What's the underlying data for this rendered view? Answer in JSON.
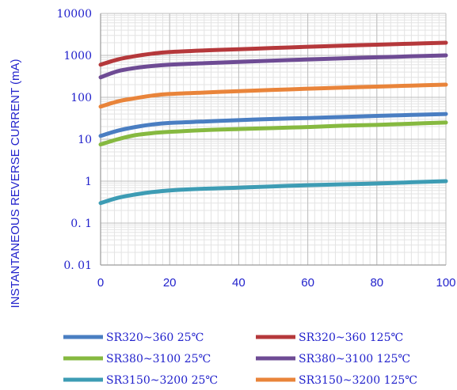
{
  "chart_data": {
    "type": "line",
    "title": "",
    "xlabel": "",
    "ylabel": "INSTANTANEOUS REVERSE CURRENT (mA)",
    "xlim": [
      0,
      100
    ],
    "ylim": [
      0.01,
      10000
    ],
    "yscale": "log",
    "grid": true,
    "legend_position": "bottom",
    "x_ticks": [
      "0",
      "20",
      "40",
      "60",
      "80",
      "100"
    ],
    "y_ticks": [
      "10000",
      "1000",
      "100",
      "10",
      "1",
      "0. 1",
      "0. 01"
    ],
    "x": [
      0,
      5,
      10,
      15,
      20,
      30,
      40,
      50,
      60,
      70,
      80,
      90,
      100
    ],
    "series": [
      {
        "name": "SR320~360  25℃",
        "color": "#4a7ec2",
        "values": [
          12,
          16,
          19.5,
          22.5,
          24.5,
          26.5,
          28.5,
          30.5,
          32,
          34,
          36,
          38,
          40
        ]
      },
      {
        "name": "SR320~360  125℃",
        "color": "#b5383b",
        "values": [
          600,
          800,
          960,
          1100,
          1200,
          1310,
          1400,
          1500,
          1600,
          1700,
          1800,
          1900,
          2000
        ]
      },
      {
        "name": "SR380~3100  25℃",
        "color": "#86b940",
        "values": [
          7.5,
          10,
          12.5,
          14,
          15,
          16.5,
          17.5,
          18.5,
          19.5,
          21,
          22,
          23.5,
          25
        ]
      },
      {
        "name": "SR380~3100  125℃",
        "color": "#6e4b94",
        "values": [
          300,
          420,
          500,
          560,
          600,
          650,
          700,
          750,
          800,
          850,
          900,
          950,
          1000
        ]
      },
      {
        "name": "SR3150~3200  25℃",
        "color": "#3d9cb4",
        "values": [
          0.3,
          0.4,
          0.48,
          0.55,
          0.6,
          0.66,
          0.7,
          0.75,
          0.8,
          0.84,
          0.88,
          0.94,
          1.0
        ]
      },
      {
        "name": "SR3150~3200  125℃",
        "color": "#e9843a",
        "values": [
          60,
          80,
          95,
          110,
          120,
          130,
          140,
          150,
          160,
          170,
          180,
          190,
          200
        ]
      }
    ],
    "legend_order": [
      0,
      1,
      2,
      3,
      4,
      5
    ]
  }
}
